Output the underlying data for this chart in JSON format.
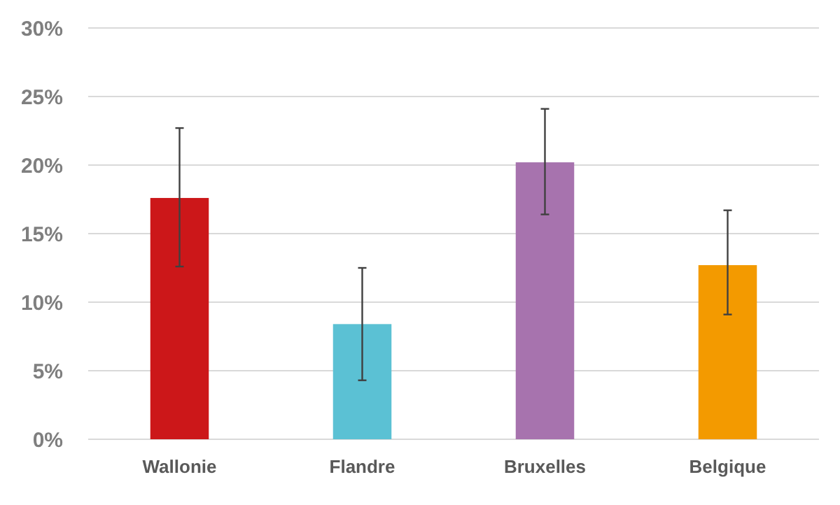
{
  "chart_data": {
    "type": "bar",
    "categories": [
      "Wallonie",
      "Flandre",
      "Bruxelles",
      "Belgique"
    ],
    "values": [
      17.6,
      8.4,
      20.2,
      12.7
    ],
    "colors": [
      "#cc1719",
      "#5bc1d4",
      "#a773ae",
      "#f39a00"
    ],
    "errors": [
      [
        12.6,
        22.7
      ],
      [
        4.3,
        12.5
      ],
      [
        16.4,
        24.1
      ],
      [
        9.1,
        16.7
      ]
    ],
    "ylim": [
      0,
      30
    ],
    "yticks": [
      {
        "value": 0,
        "label": "0%"
      },
      {
        "value": 5,
        "label": "5%"
      },
      {
        "value": 10,
        "label": "10%"
      },
      {
        "value": 15,
        "label": "15%"
      },
      {
        "value": 20,
        "label": "20%"
      },
      {
        "value": 25,
        "label": "25%"
      },
      {
        "value": 30,
        "label": "30%"
      }
    ],
    "grid": "y"
  }
}
